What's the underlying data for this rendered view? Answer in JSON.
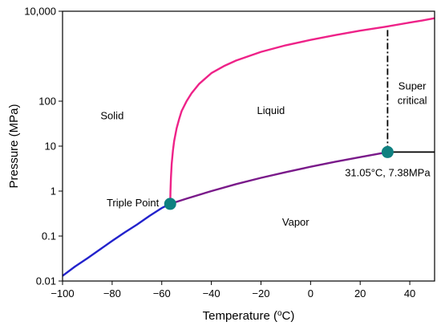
{
  "chart_data": {
    "type": "line",
    "title": "",
    "xlabel": {
      "base": "Temperature (",
      "sup": "o",
      "tail": "C)"
    },
    "ylabel": "Pressure (MPa)",
    "xscale": "linear",
    "yscale": "log",
    "xlim": [
      -100,
      50
    ],
    "ylim": [
      0.01,
      10000
    ],
    "x_ticks": [
      -100,
      -80,
      -60,
      -40,
      -20,
      0,
      20,
      40
    ],
    "x_tick_labels": [
      "−100",
      "−80",
      "−60",
      "−40",
      "−20",
      "0",
      "20",
      "40"
    ],
    "y_ticks": [
      0.01,
      0.1,
      1,
      10,
      100,
      10000
    ],
    "y_tick_labels": [
      "0.01",
      "0.1",
      "1",
      "10",
      "100",
      "10,000"
    ],
    "grid": false,
    "legend": "none",
    "series": [
      {
        "key": "sublimation",
        "color": "#2222cc",
        "x": [
          -100,
          -95,
          -90,
          -85,
          -80,
          -75,
          -70,
          -65,
          -60,
          -56.6
        ],
        "y": [
          0.013,
          0.021,
          0.032,
          0.05,
          0.078,
          0.12,
          0.18,
          0.28,
          0.42,
          0.52
        ]
      },
      {
        "key": "vaporization",
        "color": "#7a1a8a",
        "x": [
          -56.6,
          -50,
          -40,
          -30,
          -20,
          -10,
          0,
          10,
          20,
          31.05
        ],
        "y": [
          0.52,
          0.68,
          1.0,
          1.43,
          1.97,
          2.64,
          3.48,
          4.5,
          5.7,
          7.38
        ]
      },
      {
        "key": "melting",
        "color": "#ee2288",
        "x": [
          -56.6,
          -56.5,
          -56.3,
          -56,
          -55.5,
          -55,
          -54,
          -53,
          -52,
          -50,
          -48,
          -45,
          -40,
          -35,
          -30,
          -20,
          -10,
          0,
          10,
          20,
          30,
          40,
          45,
          50
        ],
        "y": [
          0.52,
          1.0,
          2.0,
          4.0,
          8.0,
          13,
          25,
          40,
          60,
          100,
          150,
          240,
          420,
          600,
          800,
          1250,
          1750,
          2300,
          2950,
          3700,
          4500,
          5600,
          6200,
          7000
        ]
      }
    ],
    "critical_boundary": {
      "x": 31.05,
      "y_from": 7.38,
      "y_to": 3900,
      "x_to": 50
    },
    "points": [
      {
        "key": "triple",
        "label": "Triple Point",
        "x": -56.6,
        "y": 0.52
      },
      {
        "key": "critical",
        "label": "31.05°C, 7.38MPa",
        "x": 31.05,
        "y": 7.38
      }
    ],
    "point_color": "#0f8080",
    "region_labels": {
      "solid": {
        "text": "Solid",
        "x": -80,
        "y": 40
      },
      "liquid": {
        "text": "Liquid",
        "x": -16,
        "y": 52
      },
      "vapor": {
        "text": "Vapor",
        "x": -6,
        "y": 0.17
      },
      "super": {
        "line1": "Super",
        "line2": "critical",
        "x": 41,
        "y": 130
      }
    }
  }
}
